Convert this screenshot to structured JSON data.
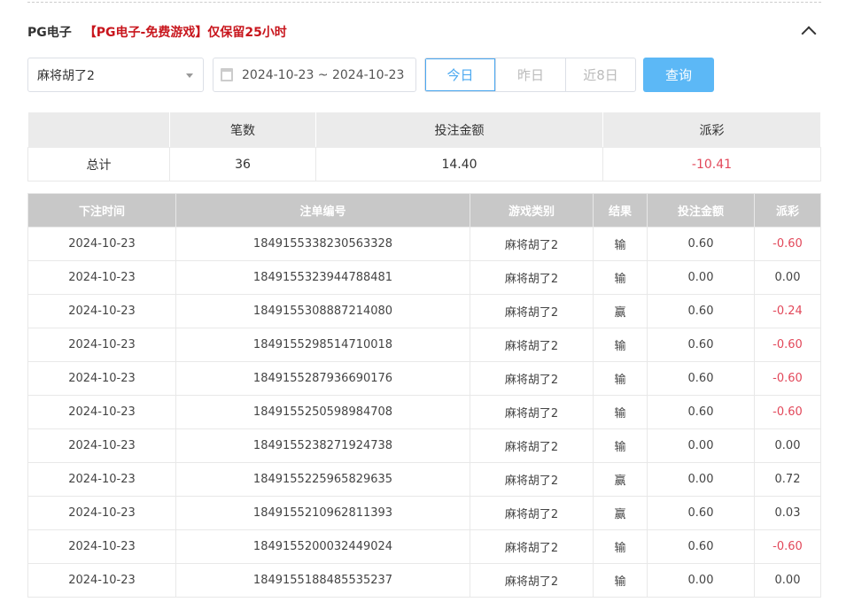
{
  "header": {
    "title": "PG电子",
    "notice": "【PG电子-免费游戏】仅保留25小时",
    "collapse_icon": "chevron-up-icon"
  },
  "filters": {
    "game_select": "麻将胡了2",
    "date_range": "2024-10-23 ~ 2024-10-23",
    "quick": [
      "今日",
      "昨日",
      "近8日"
    ],
    "query": "查询"
  },
  "summary": {
    "headers": [
      "",
      "笔数",
      "投注金额",
      "派彩"
    ],
    "row": [
      "总计",
      "36",
      "14.40",
      "-10.41"
    ]
  },
  "table": {
    "headers": [
      "下注时间",
      "注单编号",
      "游戏类别",
      "结果",
      "投注金额",
      "派彩"
    ],
    "rows": [
      [
        "2024-10-23",
        "1849155338230563328",
        "麻将胡了2",
        "输",
        "0.60",
        "-0.60"
      ],
      [
        "2024-10-23",
        "1849155323944788481",
        "麻将胡了2",
        "输",
        "0.00",
        "0.00"
      ],
      [
        "2024-10-23",
        "1849155308887214080",
        "麻将胡了2",
        "赢",
        "0.60",
        "-0.24"
      ],
      [
        "2024-10-23",
        "1849155298514710018",
        "麻将胡了2",
        "输",
        "0.60",
        "-0.60"
      ],
      [
        "2024-10-23",
        "1849155287936690176",
        "麻将胡了2",
        "输",
        "0.60",
        "-0.60"
      ],
      [
        "2024-10-23",
        "1849155250598984708",
        "麻将胡了2",
        "输",
        "0.60",
        "-0.60"
      ],
      [
        "2024-10-23",
        "1849155238271924738",
        "麻将胡了2",
        "输",
        "0.00",
        "0.00"
      ],
      [
        "2024-10-23",
        "1849155225965829635",
        "麻将胡了2",
        "赢",
        "0.00",
        "0.72"
      ],
      [
        "2024-10-23",
        "1849155210962811393",
        "麻将胡了2",
        "赢",
        "0.60",
        "0.03"
      ],
      [
        "2024-10-23",
        "1849155200032449024",
        "麻将胡了2",
        "输",
        "0.60",
        "-0.60"
      ],
      [
        "2024-10-23",
        "1849155188485535237",
        "麻将胡了2",
        "输",
        "0.00",
        "0.00"
      ]
    ]
  },
  "colors": {
    "negative": "#e2485a",
    "notice": "#c8161d",
    "primary": "#5cb8f6"
  }
}
